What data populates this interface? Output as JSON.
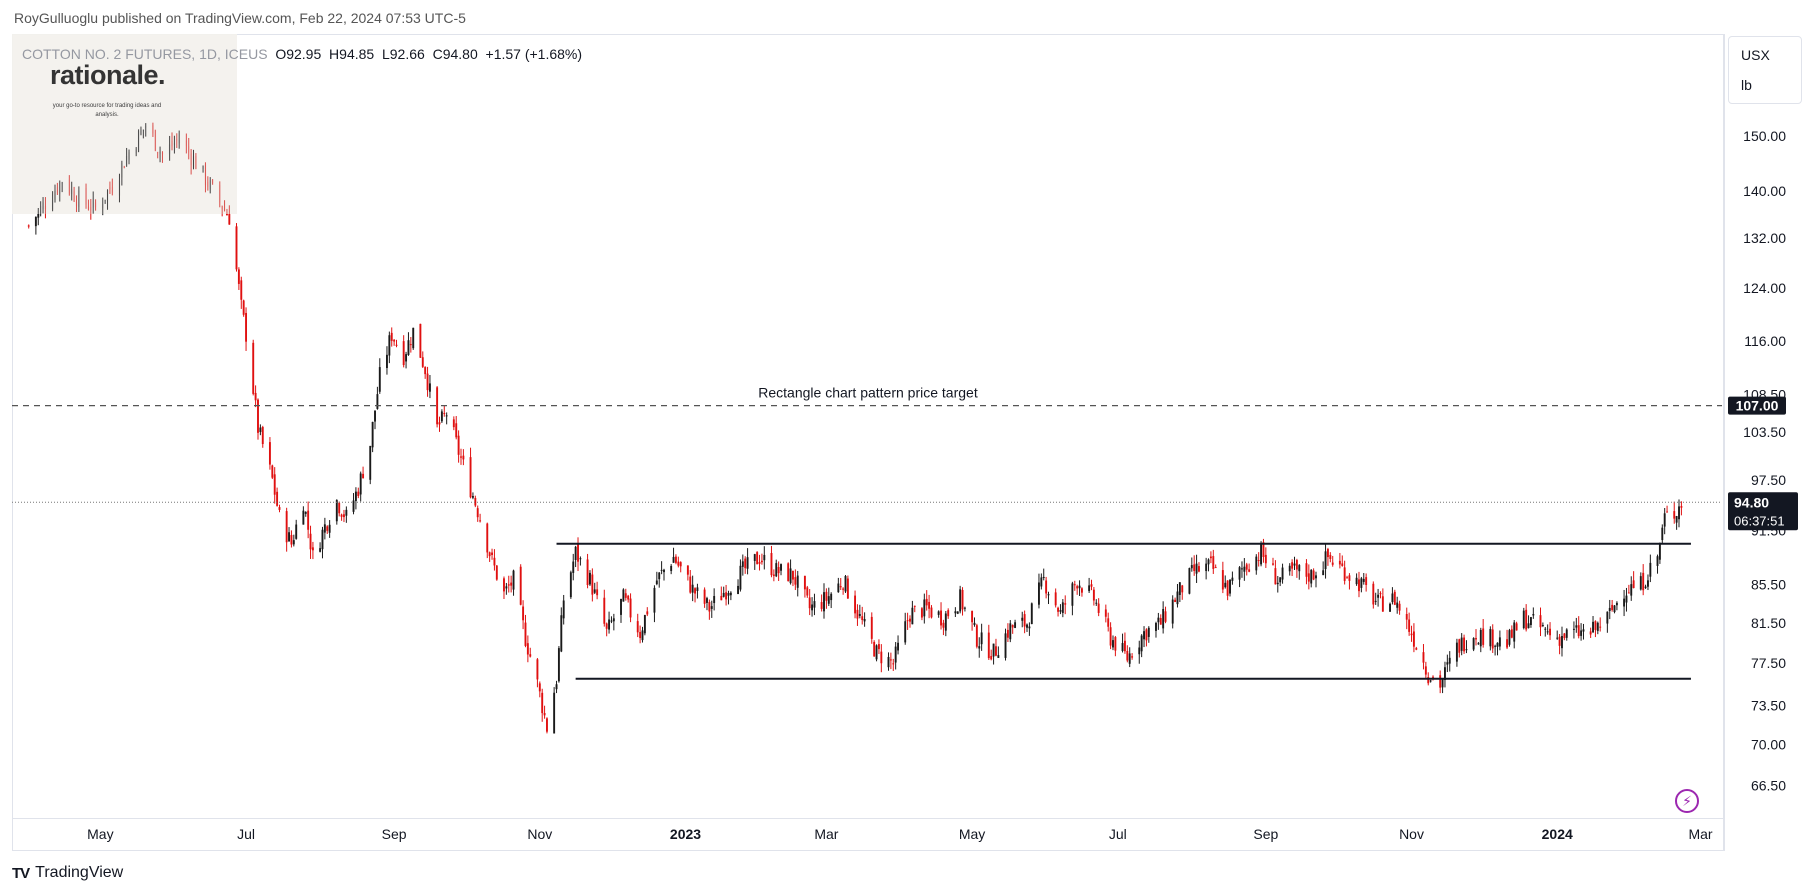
{
  "header": {
    "caption": "RoyGulluoglu published on TradingView.com, Feb 22, 2024 07:53 UTC-5"
  },
  "legend": {
    "symbol": "COTTON NO. 2 FUTURES, 1D, ICEUS",
    "open": "O92.95",
    "high": "H94.85",
    "low": "L92.66",
    "close": "C94.80",
    "change": "+1.57 (+1.68%)"
  },
  "watermark": {
    "title": "rationale.",
    "tagline": "your go-to resource for trading ideas and analysis."
  },
  "currency": {
    "unit": "USX",
    "per": "lb"
  },
  "footer": {
    "brand": "TradingView",
    "logo": "TV"
  },
  "colors": {
    "up": "#1a1a1a",
    "down": "#e01010",
    "grid": "#e0e3eb",
    "label_bg": "#131722",
    "line": "#131722"
  },
  "chart_data": {
    "type": "candlestick",
    "title": "",
    "xlabel": "",
    "ylabel": "",
    "y_scale": "log",
    "ylim": [
      64.0,
      170.0
    ],
    "price_ticks": [
      "150.00",
      "140.00",
      "132.00",
      "124.00",
      "116.00",
      "108.50",
      "103.50",
      "97.50",
      "91.50",
      "85.50",
      "81.50",
      "77.50",
      "73.50",
      "70.00",
      "66.50"
    ],
    "time_ticks": [
      {
        "label": "May",
        "date": "2022-05-01",
        "bold": false
      },
      {
        "label": "Jul",
        "date": "2022-07-01",
        "bold": false
      },
      {
        "label": "Sep",
        "date": "2022-09-01",
        "bold": false
      },
      {
        "label": "Nov",
        "date": "2022-11-01",
        "bold": false
      },
      {
        "label": "2023",
        "date": "2023-01-01",
        "bold": true
      },
      {
        "label": "Mar",
        "date": "2023-03-01",
        "bold": false
      },
      {
        "label": "May",
        "date": "2023-05-01",
        "bold": false
      },
      {
        "label": "Jul",
        "date": "2023-07-01",
        "bold": false
      },
      {
        "label": "Sep",
        "date": "2023-09-01",
        "bold": false
      },
      {
        "label": "Nov",
        "date": "2023-11-01",
        "bold": false
      },
      {
        "label": "2024",
        "date": "2024-01-01",
        "bold": true
      },
      {
        "label": "Mar",
        "date": "2024-03-01",
        "bold": false
      }
    ],
    "price_path": [
      [
        "2022-04-01",
        134.0
      ],
      [
        "2022-04-08",
        138.0
      ],
      [
        "2022-04-15",
        142.0
      ],
      [
        "2022-04-22",
        138.5
      ],
      [
        "2022-04-29",
        137.0
      ],
      [
        "2022-05-06",
        141.0
      ],
      [
        "2022-05-13",
        147.0
      ],
      [
        "2022-05-20",
        152.0
      ],
      [
        "2022-05-27",
        146.5
      ],
      [
        "2022-06-03",
        149.5
      ],
      [
        "2022-06-10",
        145.0
      ],
      [
        "2022-06-17",
        140.0
      ],
      [
        "2022-06-24",
        135.5
      ],
      [
        "2022-06-29",
        121.0
      ],
      [
        "2022-07-01",
        117.0
      ],
      [
        "2022-07-06",
        104.0
      ],
      [
        "2022-07-12",
        97.5
      ],
      [
        "2022-07-15",
        93.0
      ],
      [
        "2022-07-20",
        90.0
      ],
      [
        "2022-07-25",
        95.0
      ],
      [
        "2022-07-29",
        88.5
      ],
      [
        "2022-08-03",
        92.0
      ],
      [
        "2022-08-08",
        95.0
      ],
      [
        "2022-08-12",
        93.0
      ],
      [
        "2022-08-17",
        96.5
      ],
      [
        "2022-08-22",
        102.0
      ],
      [
        "2022-08-26",
        111.0
      ],
      [
        "2022-08-31",
        117.0
      ],
      [
        "2022-09-05",
        114.0
      ],
      [
        "2022-09-09",
        117.5
      ],
      [
        "2022-09-14",
        112.0
      ],
      [
        "2022-09-19",
        104.0
      ],
      [
        "2022-09-23",
        106.0
      ],
      [
        "2022-09-28",
        101.0
      ],
      [
        "2022-10-03",
        96.5
      ],
      [
        "2022-10-07",
        93.0
      ],
      [
        "2022-10-12",
        88.0
      ],
      [
        "2022-10-17",
        84.5
      ],
      [
        "2022-10-21",
        86.0
      ],
      [
        "2022-10-26",
        80.0
      ],
      [
        "2022-10-31",
        75.5
      ],
      [
        "2022-11-04",
        71.5
      ],
      [
        "2022-11-08",
        76.0
      ],
      [
        "2022-11-11",
        84.0
      ],
      [
        "2022-11-16",
        89.0
      ],
      [
        "2022-11-22",
        86.0
      ],
      [
        "2022-11-29",
        80.5
      ],
      [
        "2022-12-06",
        84.0
      ],
      [
        "2022-12-13",
        80.5
      ],
      [
        "2022-12-20",
        86.0
      ],
      [
        "2022-12-27",
        88.5
      ],
      [
        "2023-01-04",
        85.0
      ],
      [
        "2023-01-11",
        83.0
      ],
      [
        "2023-01-18",
        85.0
      ],
      [
        "2023-01-25",
        87.0
      ],
      [
        "2023-02-01",
        88.5
      ],
      [
        "2023-02-08",
        87.0
      ],
      [
        "2023-02-15",
        86.5
      ],
      [
        "2023-02-22",
        83.0
      ],
      [
        "2023-03-01",
        84.0
      ],
      [
        "2023-03-08",
        86.0
      ],
      [
        "2023-03-15",
        82.0
      ],
      [
        "2023-03-22",
        78.5
      ],
      [
        "2023-03-29",
        77.5
      ],
      [
        "2023-04-05",
        82.5
      ],
      [
        "2023-04-12",
        83.0
      ],
      [
        "2023-04-19",
        82.0
      ],
      [
        "2023-04-26",
        84.0
      ],
      [
        "2023-05-03",
        80.0
      ],
      [
        "2023-05-10",
        78.5
      ],
      [
        "2023-05-17",
        81.0
      ],
      [
        "2023-05-24",
        81.5
      ],
      [
        "2023-05-31",
        86.0
      ],
      [
        "2023-06-07",
        82.5
      ],
      [
        "2023-06-14",
        86.0
      ],
      [
        "2023-06-21",
        84.0
      ],
      [
        "2023-06-28",
        80.0
      ],
      [
        "2023-07-05",
        78.0
      ],
      [
        "2023-07-12",
        80.5
      ],
      [
        "2023-07-19",
        81.5
      ],
      [
        "2023-07-26",
        84.5
      ],
      [
        "2023-08-02",
        87.0
      ],
      [
        "2023-08-09",
        87.5
      ],
      [
        "2023-08-16",
        85.0
      ],
      [
        "2023-08-23",
        87.5
      ],
      [
        "2023-08-30",
        89.0
      ],
      [
        "2023-09-06",
        86.0
      ],
      [
        "2023-09-13",
        87.0
      ],
      [
        "2023-09-20",
        86.5
      ],
      [
        "2023-09-27",
        88.5
      ],
      [
        "2023-10-04",
        87.0
      ],
      [
        "2023-10-11",
        85.5
      ],
      [
        "2023-10-18",
        83.5
      ],
      [
        "2023-10-25",
        84.0
      ],
      [
        "2023-11-01",
        80.5
      ],
      [
        "2023-11-08",
        76.5
      ],
      [
        "2023-11-13",
        75.5
      ],
      [
        "2023-11-20",
        79.0
      ],
      [
        "2023-11-27",
        80.5
      ],
      [
        "2023-12-04",
        80.0
      ],
      [
        "2023-12-11",
        79.5
      ],
      [
        "2023-12-18",
        82.0
      ],
      [
        "2023-12-25",
        81.0
      ],
      [
        "2024-01-01",
        80.0
      ],
      [
        "2024-01-08",
        80.5
      ],
      [
        "2024-01-15",
        80.5
      ],
      [
        "2024-01-22",
        82.0
      ],
      [
        "2024-01-29",
        85.0
      ],
      [
        "2024-02-05",
        85.5
      ],
      [
        "2024-02-12",
        88.5
      ],
      [
        "2024-02-15",
        93.0
      ],
      [
        "2024-02-19",
        93.5
      ],
      [
        "2024-02-22",
        94.8
      ]
    ],
    "annotations": {
      "target_line": {
        "price": 107.0,
        "label": "Rectangle chart pattern price target",
        "badge": "107.00",
        "style": "dashed"
      },
      "last_price": {
        "price": 94.8,
        "badge": "94.80",
        "countdown": "06:37:51",
        "style": "dotted"
      },
      "rect_top": {
        "price": 90.0,
        "from": "2022-11-08",
        "to": "2024-02-26"
      },
      "rect_bottom": {
        "price": 76.0,
        "from": "2022-11-16",
        "to": "2024-02-26"
      }
    }
  }
}
